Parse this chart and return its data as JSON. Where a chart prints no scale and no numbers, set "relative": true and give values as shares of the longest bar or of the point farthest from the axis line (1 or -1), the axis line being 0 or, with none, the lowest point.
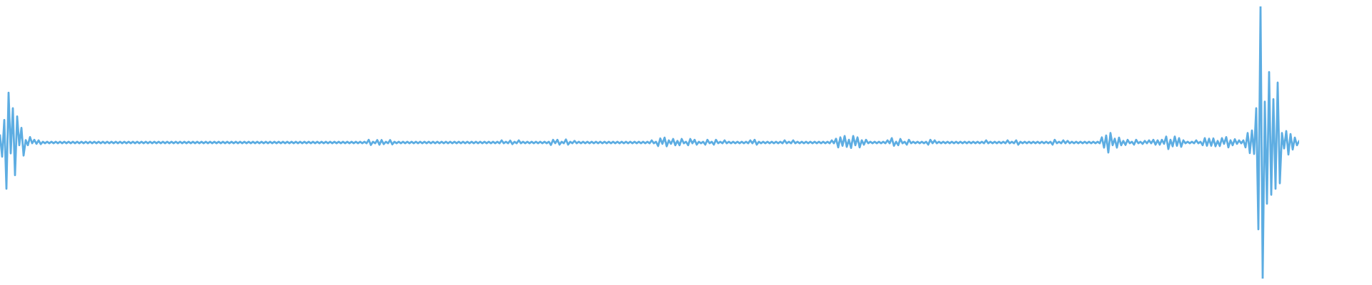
{
  "chart_data": {
    "type": "line",
    "relative": true,
    "tick_labels": false,
    "categories": [
      null,
      null,
      null,
      null,
      null,
      null,
      null,
      null,
      null,
      null,
      null,
      null,
      null,
      null,
      null,
      null,
      null,
      null,
      null,
      null,
      null,
      null,
      null,
      null,
      null,
      null,
      null,
      null,
      null,
      null,
      null,
      null,
      null,
      null,
      null,
      null,
      null,
      null,
      null,
      null,
      null,
      null,
      null,
      null,
      null,
      null,
      null,
      null,
      null,
      null,
      null,
      null,
      null,
      null,
      null,
      null,
      null,
      null,
      null,
      null,
      null,
      null,
      null,
      null,
      null,
      null,
      null,
      null,
      null,
      null,
      null,
      null,
      null,
      null,
      null,
      null,
      null,
      null,
      null,
      null,
      null,
      null,
      null,
      null,
      null,
      null,
      null,
      null,
      null,
      null,
      null,
      null,
      null,
      null,
      null,
      null,
      null,
      null,
      null,
      null,
      null,
      null,
      null,
      null,
      null,
      null,
      null,
      null,
      null,
      null,
      null,
      null,
      null,
      null,
      null,
      null,
      null,
      null,
      null,
      null,
      null,
      null,
      null,
      null,
      null,
      null,
      null,
      null,
      null,
      null,
      null,
      null,
      null,
      null,
      null,
      null,
      null,
      null,
      null,
      null,
      null,
      null,
      null,
      null,
      null,
      null,
      null,
      null,
      null,
      null,
      null,
      null,
      null,
      null,
      null,
      null,
      null,
      null,
      null,
      null,
      null,
      null,
      null,
      null,
      null,
      null,
      null,
      null,
      null,
      null,
      null,
      null,
      null,
      null,
      null,
      null,
      null,
      null,
      null,
      null,
      null,
      null,
      null,
      null,
      null,
      null,
      null,
      null,
      null,
      null,
      null,
      null,
      null,
      null,
      null,
      null,
      null,
      null,
      null,
      null,
      null,
      null,
      null,
      null,
      null,
      null,
      null,
      null,
      null,
      null,
      null,
      null,
      null,
      null,
      null,
      null,
      null,
      null,
      null,
      null,
      null,
      null,
      null,
      null,
      null,
      null,
      null,
      null,
      null,
      null,
      null,
      null,
      null,
      null,
      null,
      null,
      null,
      null,
      null,
      null,
      null,
      null,
      null,
      null,
      null,
      null,
      null,
      null,
      null,
      null,
      null,
      null,
      null,
      null,
      null,
      null,
      null,
      null,
      null,
      null,
      null,
      null,
      null,
      null,
      null,
      null,
      null,
      null,
      null,
      null,
      null,
      null,
      null,
      null,
      null,
      null,
      null,
      null,
      null,
      null,
      null,
      null,
      null,
      null,
      null,
      null,
      null,
      null,
      null,
      null,
      null,
      null,
      null,
      null,
      null,
      null,
      null,
      null,
      null,
      null,
      null,
      null,
      null,
      null,
      null,
      null,
      null,
      null,
      null,
      null,
      null,
      null,
      null,
      null,
      null,
      null,
      null,
      null,
      null,
      null,
      null,
      null,
      null,
      null,
      null,
      null,
      null,
      null,
      null,
      null,
      null,
      null,
      null,
      null,
      null,
      null,
      null,
      null,
      null,
      null,
      null,
      null,
      null,
      null,
      null,
      null,
      null,
      null,
      null,
      null,
      null,
      null,
      null,
      null,
      null,
      null,
      null,
      null,
      null,
      null,
      null,
      null,
      null,
      null,
      null,
      null,
      null,
      null,
      null,
      null,
      null,
      null,
      null,
      null,
      null,
      null,
      null,
      null,
      null,
      null,
      null,
      null,
      null,
      null,
      null,
      null,
      null,
      null,
      null,
      null,
      null,
      null,
      null,
      null,
      null,
      null,
      null,
      null,
      null,
      null,
      null,
      null,
      null,
      null,
      null,
      null,
      null,
      null,
      null,
      null,
      null,
      null,
      null,
      null,
      null,
      null,
      null,
      null,
      null,
      null,
      null,
      null,
      null,
      null,
      null,
      null,
      null,
      null,
      null,
      null,
      null,
      null,
      null,
      null,
      null,
      null,
      null,
      null,
      null,
      null,
      null,
      null,
      null,
      null,
      null,
      null,
      null,
      null,
      null,
      null,
      null,
      null,
      null,
      null,
      null,
      null,
      null,
      null,
      null,
      null,
      null,
      null,
      null,
      null,
      null,
      null,
      null,
      null,
      null,
      null,
      null,
      null,
      null,
      null,
      null,
      null,
      null,
      null,
      null,
      null,
      null,
      null,
      null,
      null,
      null,
      null,
      null,
      null,
      null,
      null,
      null,
      null,
      null,
      null,
      null,
      null,
      null,
      null,
      null,
      null,
      null,
      null,
      null,
      null,
      null,
      null,
      null,
      null,
      null,
      null,
      null,
      null,
      null,
      null,
      null,
      null,
      null,
      null,
      null,
      null,
      null,
      null,
      null,
      null,
      null,
      null,
      null,
      null,
      null,
      null,
      null,
      null,
      null,
      null,
      null,
      null,
      null,
      null,
      null,
      null,
      null,
      null,
      null,
      null,
      null,
      null,
      null,
      null,
      null,
      null,
      null,
      null,
      null,
      null,
      null,
      null,
      null,
      null,
      null,
      null,
      null,
      null,
      null,
      null,
      null,
      null,
      null,
      null,
      null,
      null,
      null,
      null,
      null,
      null,
      null,
      null,
      null,
      null,
      null,
      null,
      null,
      null,
      null,
      null,
      null,
      null,
      null,
      null,
      null,
      null,
      null,
      null,
      null,
      null,
      null,
      null,
      null,
      null,
      null,
      null,
      null,
      null,
      null,
      null,
      null,
      null,
      null
    ],
    "series": [
      {
        "color": "#5dade2",
        "values": [
          0.526,
          0.448,
          0.583,
          0.33,
          0.683,
          0.46,
          0.626,
          0.38,
          0.596,
          0.49,
          0.554,
          0.452,
          0.509,
          0.49,
          0.52,
          0.497,
          0.51,
          0.495,
          0.508,
          0.494,
          0.503,
          0.497,
          0.503,
          0.497,
          0.503,
          0.497,
          0.503,
          0.497,
          0.503,
          0.497,
          0.503,
          0.497,
          0.503,
          0.497,
          0.503,
          0.497,
          0.503,
          0.497,
          0.503,
          0.497,
          0.503,
          0.497,
          0.503,
          0.497,
          0.503,
          0.497,
          0.503,
          0.497,
          0.503,
          0.497,
          0.503,
          0.497,
          0.503,
          0.497,
          0.503,
          0.497,
          0.503,
          0.497,
          0.503,
          0.497,
          0.503,
          0.497,
          0.503,
          0.497,
          0.503,
          0.497,
          0.503,
          0.497,
          0.503,
          0.497,
          0.503,
          0.497,
          0.503,
          0.497,
          0.503,
          0.497,
          0.503,
          0.497,
          0.503,
          0.497,
          0.503,
          0.497,
          0.503,
          0.497,
          0.503,
          0.497,
          0.503,
          0.497,
          0.503,
          0.497,
          0.503,
          0.497,
          0.503,
          0.497,
          0.503,
          0.497,
          0.503,
          0.497,
          0.503,
          0.497,
          0.503,
          0.497,
          0.503,
          0.497,
          0.503,
          0.497,
          0.503,
          0.497,
          0.503,
          0.497,
          0.503,
          0.497,
          0.503,
          0.497,
          0.503,
          0.497,
          0.503,
          0.497,
          0.503,
          0.497,
          0.503,
          0.497,
          0.503,
          0.497,
          0.503,
          0.497,
          0.503,
          0.497,
          0.503,
          0.497,
          0.503,
          0.497,
          0.503,
          0.497,
          0.503,
          0.497,
          0.503,
          0.497,
          0.503,
          0.497,
          0.503,
          0.497,
          0.503,
          0.497,
          0.503,
          0.497,
          0.503,
          0.497,
          0.503,
          0.497,
          0.503,
          0.497,
          0.503,
          0.497,
          0.503,
          0.497,
          0.503,
          0.497,
          0.503,
          0.497,
          0.503,
          0.497,
          0.503,
          0.497,
          0.503,
          0.497,
          0.503,
          0.497,
          0.503,
          0.497,
          0.503,
          0.497,
          0.51,
          0.491,
          0.503,
          0.497,
          0.509,
          0.492,
          0.509,
          0.494,
          0.503,
          0.497,
          0.509,
          0.493,
          0.503,
          0.497,
          0.503,
          0.497,
          0.503,
          0.497,
          0.503,
          0.497,
          0.503,
          0.497,
          0.503,
          0.497,
          0.503,
          0.497,
          0.503,
          0.497,
          0.503,
          0.497,
          0.503,
          0.497,
          0.503,
          0.497,
          0.503,
          0.497,
          0.503,
          0.497,
          0.503,
          0.497,
          0.503,
          0.497,
          0.503,
          0.497,
          0.503,
          0.497,
          0.503,
          0.497,
          0.503,
          0.497,
          0.503,
          0.497,
          0.503,
          0.497,
          0.503,
          0.497,
          0.503,
          0.497,
          0.503,
          0.497,
          0.503,
          0.497,
          0.508,
          0.497,
          0.503,
          0.497,
          0.507,
          0.494,
          0.503,
          0.497,
          0.508,
          0.497,
          0.503,
          0.497,
          0.503,
          0.497,
          0.503,
          0.497,
          0.503,
          0.497,
          0.503,
          0.497,
          0.503,
          0.497,
          0.503,
          0.491,
          0.51,
          0.497,
          0.51,
          0.492,
          0.503,
          0.497,
          0.511,
          0.492,
          0.503,
          0.497,
          0.506,
          0.497,
          0.503,
          0.497,
          0.503,
          0.497,
          0.503,
          0.497,
          0.503,
          0.497,
          0.503,
          0.497,
          0.503,
          0.497,
          0.503,
          0.497,
          0.503,
          0.497,
          0.503,
          0.497,
          0.503,
          0.497,
          0.503,
          0.497,
          0.503,
          0.497,
          0.503,
          0.497,
          0.503,
          0.497,
          0.503,
          0.497,
          0.503,
          0.497,
          0.503,
          0.497,
          0.508,
          0.497,
          0.503,
          0.487,
          0.515,
          0.495,
          0.518,
          0.486,
          0.508,
          0.495,
          0.513,
          0.49,
          0.506,
          0.49,
          0.513,
          0.497,
          0.503,
          0.49,
          0.513,
          0.497,
          0.51,
          0.492,
          0.503,
          0.497,
          0.503,
          0.492,
          0.51,
          0.497,
          0.503,
          0.492,
          0.51,
          0.497,
          0.503,
          0.497,
          0.508,
          0.497,
          0.503,
          0.497,
          0.503,
          0.497,
          0.503,
          0.497,
          0.503,
          0.497,
          0.503,
          0.497,
          0.508,
          0.497,
          0.51,
          0.492,
          0.503,
          0.497,
          0.503,
          0.497,
          0.503,
          0.497,
          0.503,
          0.497,
          0.503,
          0.497,
          0.503,
          0.497,
          0.508,
          0.497,
          0.503,
          0.497,
          0.508,
          0.497,
          0.503,
          0.497,
          0.503,
          0.497,
          0.503,
          0.497,
          0.503,
          0.497,
          0.503,
          0.497,
          0.503,
          0.497,
          0.503,
          0.497,
          0.503,
          0.497,
          0.508,
          0.497,
          0.514,
          0.482,
          0.519,
          0.488,
          0.524,
          0.484,
          0.51,
          0.48,
          0.524,
          0.49,
          0.519,
          0.482,
          0.508,
          0.492,
          0.51,
          0.497,
          0.503,
          0.497,
          0.503,
          0.497,
          0.503,
          0.497,
          0.503,
          0.497,
          0.508,
          0.497,
          0.516,
          0.488,
          0.503,
          0.49,
          0.513,
          0.497,
          0.503,
          0.492,
          0.51,
          0.497,
          0.503,
          0.497,
          0.503,
          0.497,
          0.503,
          0.497,
          0.503,
          0.492,
          0.51,
          0.497,
          0.508,
          0.497,
          0.503,
          0.497,
          0.503,
          0.497,
          0.503,
          0.497,
          0.503,
          0.497,
          0.503,
          0.497,
          0.503,
          0.497,
          0.503,
          0.497,
          0.503,
          0.497,
          0.503,
          0.497,
          0.503,
          0.497,
          0.503,
          0.497,
          0.508,
          0.497,
          0.503,
          0.497,
          0.503,
          0.497,
          0.503,
          0.497,
          0.503,
          0.497,
          0.508,
          0.497,
          0.503,
          0.497,
          0.508,
          0.492,
          0.503,
          0.497,
          0.503,
          0.497,
          0.503,
          0.497,
          0.503,
          0.497,
          0.503,
          0.497,
          0.503,
          0.497,
          0.503,
          0.497,
          0.503,
          0.492,
          0.51,
          0.497,
          0.503,
          0.497,
          0.508,
          0.497,
          0.506,
          0.497,
          0.503,
          0.497,
          0.503,
          0.497,
          0.503,
          0.497,
          0.503,
          0.497,
          0.503,
          0.497,
          0.503,
          0.497,
          0.503,
          0.497,
          0.519,
          0.481,
          0.526,
          0.463,
          0.535,
          0.49,
          0.514,
          0.481,
          0.518,
          0.49,
          0.506,
          0.491,
          0.51,
          0.497,
          0.503,
          0.492,
          0.51,
          0.497,
          0.503,
          0.495,
          0.506,
          0.497,
          0.508,
          0.497,
          0.51,
          0.492,
          0.508,
          0.492,
          0.51,
          0.495,
          0.522,
          0.476,
          0.51,
          0.486,
          0.522,
          0.488,
          0.516,
          0.484,
          0.508,
          0.497,
          0.503,
          0.497,
          0.503,
          0.497,
          0.508,
          0.497,
          0.503,
          0.49,
          0.516,
          0.488,
          0.514,
          0.488,
          0.515,
          0.486,
          0.506,
          0.487,
          0.516,
          0.495,
          0.52,
          0.482,
          0.508,
          0.49,
          0.512,
          0.495,
          0.508,
          0.497,
          0.508,
          0.482,
          0.535,
          0.461,
          0.544,
          0.458,
          0.626,
          0.181,
          1,
          0,
          0.65,
          0.275,
          0.759,
          0.308,
          0.659,
          0.33,
          0.72,
          0.35,
          0.535,
          0.478,
          0.542,
          0.456,
          0.531,
          0.474,
          0.518,
          0.49,
          0.505
        ]
      }
    ]
  }
}
